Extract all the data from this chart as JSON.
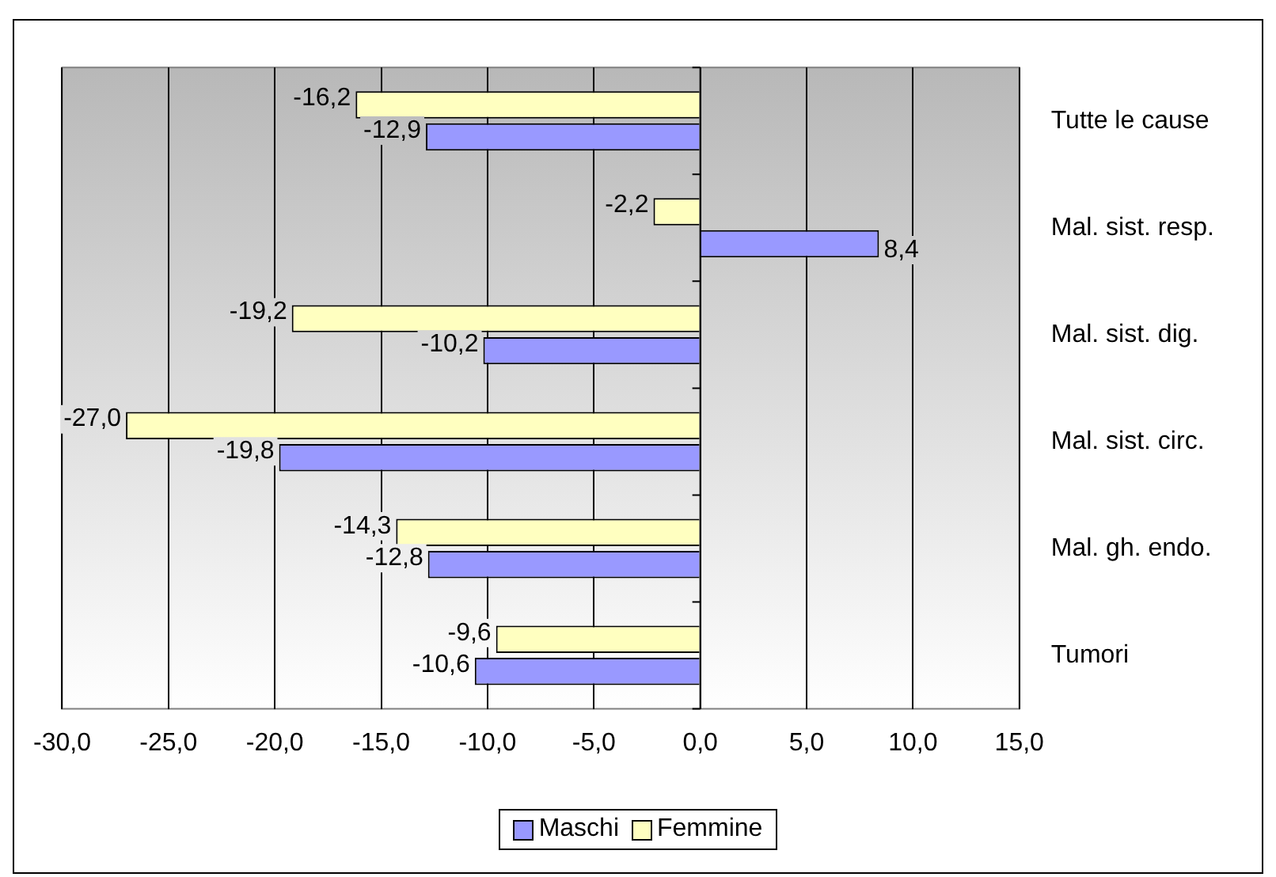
{
  "chart_data": {
    "type": "bar",
    "orientation": "horizontal",
    "categories": [
      "Tutte le cause",
      "Mal. sist. resp.",
      "Mal. sist. dig.",
      "Mal. sist. circ.",
      "Mal. gh. endo.",
      "Tumori"
    ],
    "series": [
      {
        "name": "Femmine",
        "color": "#ffffc0",
        "values": [
          -16.2,
          -2.2,
          -19.2,
          -27.0,
          -14.3,
          -9.6
        ],
        "value_labels": [
          "-16,2",
          "-2,2",
          "-19,2",
          "-27,0",
          "-14,3",
          "-9,6"
        ]
      },
      {
        "name": "Maschi",
        "color": "#9999ff",
        "values": [
          -12.9,
          8.4,
          -10.2,
          -19.8,
          -12.8,
          -10.6
        ],
        "value_labels": [
          "-12,9",
          "8,4",
          "-10,2",
          "-19,8",
          "-12,8",
          "-10,6"
        ]
      }
    ],
    "xlim": [
      -30,
      15
    ],
    "xticks": [
      {
        "value": -30,
        "label": "-30,0"
      },
      {
        "value": -25,
        "label": "-25,0"
      },
      {
        "value": -20,
        "label": "-20,0"
      },
      {
        "value": -15,
        "label": "-15,0"
      },
      {
        "value": -10,
        "label": "-10,0"
      },
      {
        "value": -5,
        "label": "-5,0"
      },
      {
        "value": 0,
        "label": "0,0"
      },
      {
        "value": 5,
        "label": "5,0"
      },
      {
        "value": 10,
        "label": "10,0"
      },
      {
        "value": 15,
        "label": "15,0"
      }
    ],
    "grid": "x",
    "legend": "bottom"
  }
}
